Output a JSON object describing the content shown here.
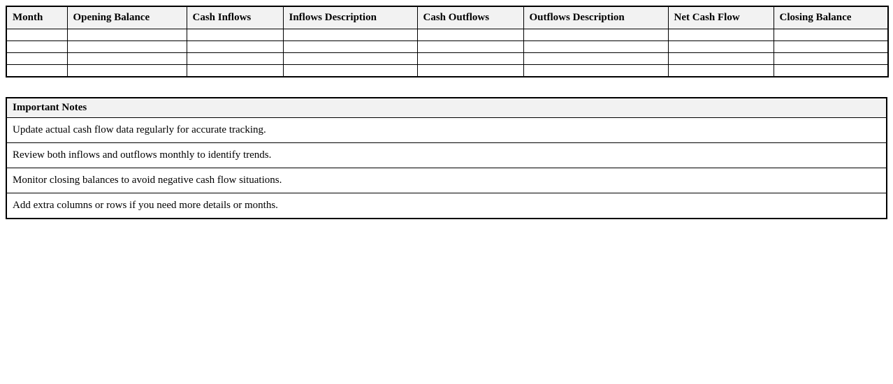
{
  "cash_flow_table": {
    "columns": [
      "Month",
      "Opening Balance",
      "Cash Inflows",
      "Inflows Description",
      "Cash Outflows",
      "Outflows Description",
      "Net Cash Flow",
      "Closing Balance"
    ],
    "empty_row_count": 4
  },
  "notes_table": {
    "title": "Important Notes",
    "notes": [
      "Update actual cash flow data regularly for accurate tracking.",
      "Review both inflows and outflows monthly to identify trends.",
      "Monitor closing balances to avoid negative cash flow situations.",
      "Add extra columns or rows if you need more details or months."
    ]
  },
  "colors": {
    "header_bg": "#f2f2f2",
    "border": "#000000",
    "text": "#000000",
    "page_bg": "#ffffff"
  }
}
